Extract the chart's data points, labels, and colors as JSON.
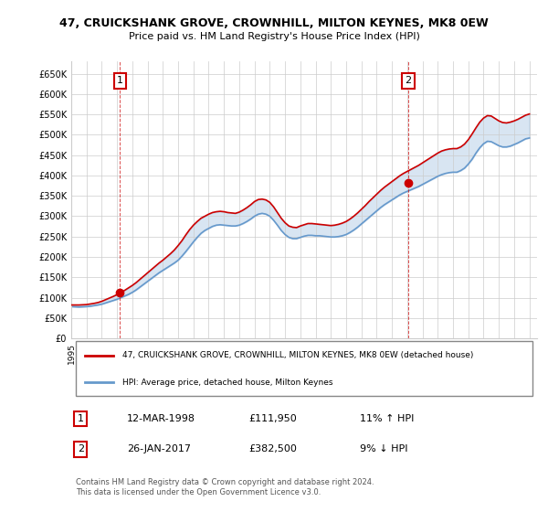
{
  "title": "47, CRUICKSHANK GROVE, CROWNHILL, MILTON KEYNES, MK8 0EW",
  "subtitle": "Price paid vs. HM Land Registry's House Price Index (HPI)",
  "ylabel_ticks": [
    0,
    50000,
    100000,
    150000,
    200000,
    250000,
    300000,
    350000,
    400000,
    450000,
    500000,
    550000,
    600000,
    650000
  ],
  "ylim": [
    0,
    680000
  ],
  "xlim_start": 1995.0,
  "xlim_end": 2025.5,
  "sale1_x": 1998.19,
  "sale1_y": 111950,
  "sale2_x": 2017.07,
  "sale2_y": 382500,
  "sale1_label": "1",
  "sale2_label": "2",
  "legend_line1": "47, CRUICKSHANK GROVE, CROWNHILL, MILTON KEYNES, MK8 0EW (detached house)",
  "legend_line2": "HPI: Average price, detached house, Milton Keynes",
  "table_row1": [
    "1",
    "12-MAR-1998",
    "£111,950",
    "11% ↑ HPI"
  ],
  "table_row2": [
    "2",
    "26-JAN-2017",
    "£382,500",
    "9% ↓ HPI"
  ],
  "footnote": "Contains HM Land Registry data © Crown copyright and database right 2024.\nThis data is licensed under the Open Government Licence v3.0.",
  "red_color": "#cc0000",
  "blue_color": "#6699cc",
  "background_color": "#ffffff",
  "grid_color": "#cccccc",
  "hpi_years": [
    1995.0,
    1995.25,
    1995.5,
    1995.75,
    1996.0,
    1996.25,
    1996.5,
    1996.75,
    1997.0,
    1997.25,
    1997.5,
    1997.75,
    1998.0,
    1998.25,
    1998.5,
    1998.75,
    1999.0,
    1999.25,
    1999.5,
    1999.75,
    2000.0,
    2000.25,
    2000.5,
    2000.75,
    2001.0,
    2001.25,
    2001.5,
    2001.75,
    2002.0,
    2002.25,
    2002.5,
    2002.75,
    2003.0,
    2003.25,
    2003.5,
    2003.75,
    2004.0,
    2004.25,
    2004.5,
    2004.75,
    2005.0,
    2005.25,
    2005.5,
    2005.75,
    2006.0,
    2006.25,
    2006.5,
    2006.75,
    2007.0,
    2007.25,
    2007.5,
    2007.75,
    2008.0,
    2008.25,
    2008.5,
    2008.75,
    2009.0,
    2009.25,
    2009.5,
    2009.75,
    2010.0,
    2010.25,
    2010.5,
    2010.75,
    2011.0,
    2011.25,
    2011.5,
    2011.75,
    2012.0,
    2012.25,
    2012.5,
    2012.75,
    2013.0,
    2013.25,
    2013.5,
    2013.75,
    2014.0,
    2014.25,
    2014.5,
    2014.75,
    2015.0,
    2015.25,
    2015.5,
    2015.75,
    2016.0,
    2016.25,
    2016.5,
    2016.75,
    2017.0,
    2017.25,
    2017.5,
    2017.75,
    2018.0,
    2018.25,
    2018.5,
    2018.75,
    2019.0,
    2019.25,
    2019.5,
    2019.75,
    2020.0,
    2020.25,
    2020.5,
    2020.75,
    2021.0,
    2021.25,
    2021.5,
    2021.75,
    2022.0,
    2022.25,
    2022.5,
    2022.75,
    2023.0,
    2023.25,
    2023.5,
    2023.75,
    2024.0,
    2024.25,
    2024.5,
    2024.75,
    2025.0
  ],
  "hpi_values": [
    78000,
    77500,
    77000,
    77500,
    78000,
    79000,
    80500,
    82000,
    84000,
    87000,
    90000,
    93000,
    96000,
    100000,
    104000,
    108000,
    113000,
    119000,
    126000,
    133000,
    140000,
    147000,
    154000,
    161000,
    167000,
    173000,
    179000,
    185000,
    192000,
    202000,
    213000,
    225000,
    237000,
    248000,
    258000,
    265000,
    270000,
    275000,
    278000,
    279000,
    278000,
    277000,
    276000,
    276000,
    278000,
    282000,
    287000,
    293000,
    300000,
    305000,
    307000,
    305000,
    300000,
    290000,
    278000,
    265000,
    255000,
    248000,
    245000,
    245000,
    248000,
    251000,
    253000,
    253000,
    252000,
    252000,
    251000,
    250000,
    249000,
    249000,
    250000,
    252000,
    255000,
    260000,
    266000,
    273000,
    281000,
    289000,
    297000,
    305000,
    313000,
    321000,
    328000,
    334000,
    340000,
    346000,
    352000,
    357000,
    361000,
    365000,
    369000,
    373000,
    378000,
    383000,
    388000,
    393000,
    398000,
    402000,
    405000,
    407000,
    408000,
    408000,
    412000,
    418000,
    428000,
    440000,
    455000,
    468000,
    478000,
    484000,
    483000,
    478000,
    473000,
    470000,
    470000,
    472000,
    476000,
    480000,
    485000,
    490000,
    492000
  ],
  "red_years": [
    1995.0,
    1995.25,
    1995.5,
    1995.75,
    1996.0,
    1996.25,
    1996.5,
    1996.75,
    1997.0,
    1997.25,
    1997.5,
    1997.75,
    1998.0,
    1998.25,
    1998.5,
    1998.75,
    1999.0,
    1999.25,
    1999.5,
    1999.75,
    2000.0,
    2000.25,
    2000.5,
    2000.75,
    2001.0,
    2001.25,
    2001.5,
    2001.75,
    2002.0,
    2002.25,
    2002.5,
    2002.75,
    2003.0,
    2003.25,
    2003.5,
    2003.75,
    2004.0,
    2004.25,
    2004.5,
    2004.75,
    2005.0,
    2005.25,
    2005.5,
    2005.75,
    2006.0,
    2006.25,
    2006.5,
    2006.75,
    2007.0,
    2007.25,
    2007.5,
    2007.75,
    2008.0,
    2008.25,
    2008.5,
    2008.75,
    2009.0,
    2009.25,
    2009.5,
    2009.75,
    2010.0,
    2010.25,
    2010.5,
    2010.75,
    2011.0,
    2011.25,
    2011.5,
    2011.75,
    2012.0,
    2012.25,
    2012.5,
    2012.75,
    2013.0,
    2013.25,
    2013.5,
    2013.75,
    2014.0,
    2014.25,
    2014.5,
    2014.75,
    2015.0,
    2015.25,
    2015.5,
    2015.75,
    2016.0,
    2016.25,
    2016.5,
    2016.75,
    2017.0,
    2017.25,
    2017.5,
    2017.75,
    2018.0,
    2018.25,
    2018.5,
    2018.75,
    2019.0,
    2019.25,
    2019.5,
    2019.75,
    2020.0,
    2020.25,
    2020.5,
    2020.75,
    2021.0,
    2021.25,
    2021.5,
    2021.75,
    2022.0,
    2022.25,
    2022.5,
    2022.75,
    2023.0,
    2023.25,
    2023.5,
    2023.75,
    2024.0,
    2024.25,
    2024.5,
    2024.75,
    2025.0
  ],
  "red_values": [
    82000,
    82000,
    82000,
    82500,
    83000,
    84500,
    86000,
    88000,
    91000,
    95000,
    99000,
    103000,
    107500,
    112500,
    118000,
    124000,
    130000,
    137000,
    145000,
    153000,
    161000,
    169000,
    177000,
    185000,
    192000,
    200000,
    208000,
    217000,
    228000,
    240000,
    254000,
    267000,
    278000,
    287000,
    295000,
    300000,
    305000,
    309000,
    311000,
    312000,
    311000,
    309000,
    308000,
    307000,
    310000,
    315000,
    321000,
    328000,
    336000,
    341000,
    342000,
    340000,
    334000,
    323000,
    309000,
    295000,
    284000,
    276000,
    273000,
    272000,
    276000,
    279000,
    282000,
    282000,
    281000,
    280000,
    279000,
    278000,
    277000,
    278000,
    280000,
    283000,
    287000,
    293000,
    300000,
    308000,
    317000,
    326000,
    336000,
    345000,
    354000,
    363000,
    371000,
    378000,
    385000,
    392000,
    399000,
    405000,
    410000,
    415000,
    420000,
    425000,
    431000,
    437000,
    443000,
    449000,
    455000,
    460000,
    463000,
    465000,
    466000,
    466000,
    470000,
    477000,
    488000,
    502000,
    517000,
    531000,
    541000,
    547000,
    546000,
    540000,
    534000,
    530000,
    529000,
    531000,
    534000,
    538000,
    543000,
    548000,
    551000
  ]
}
